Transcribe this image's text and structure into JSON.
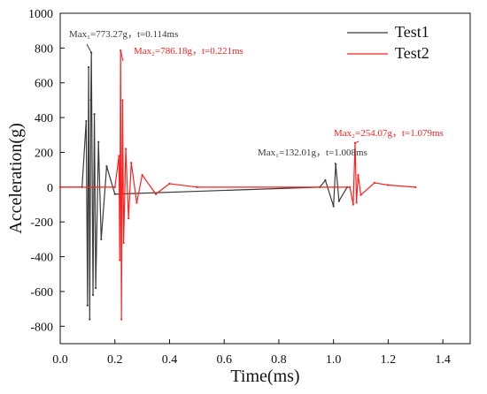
{
  "chart_data": {
    "type": "line",
    "title": "",
    "xlabel": "Time(ms)",
    "ylabel": "Acceleration(g)",
    "xlim": [
      0.0,
      1.5
    ],
    "ylim": [
      -900,
      1000
    ],
    "x_ticks": [
      "0.0",
      "0.2",
      "0.4",
      "0.6",
      "0.8",
      "1.0",
      "1.2",
      "1.4"
    ],
    "y_ticks": [
      "-800",
      "-600",
      "-400",
      "-200",
      "0",
      "200",
      "400",
      "600",
      "800",
      "1000"
    ],
    "grid": false,
    "legend_position": "top-right",
    "series": [
      {
        "name": "Test1",
        "color": "#3a3a3a",
        "x": [
          0.0,
          0.08,
          0.095,
          0.1,
          0.104,
          0.108,
          0.112,
          0.114,
          0.12,
          0.125,
          0.13,
          0.14,
          0.15,
          0.17,
          0.2,
          0.95,
          0.97,
          1.0,
          1.008,
          1.02,
          1.05
        ],
        "y": [
          0,
          0,
          380,
          -680,
          690,
          -760,
          500,
          773.27,
          -620,
          420,
          -580,
          260,
          -300,
          120,
          -40,
          0,
          40,
          -110,
          132.01,
          -80,
          0
        ]
      },
      {
        "name": "Test2",
        "color": "#ff1f1f",
        "x": [
          0.0,
          0.2,
          0.215,
          0.218,
          0.221,
          0.224,
          0.228,
          0.232,
          0.24,
          0.25,
          0.26,
          0.28,
          0.3,
          0.35,
          0.4,
          0.5,
          1.06,
          1.072,
          1.079,
          1.084,
          1.09,
          1.1,
          1.15,
          1.2,
          1.3
        ],
        "y": [
          0,
          0,
          180,
          -420,
          786.18,
          -760,
          500,
          -320,
          220,
          -180,
          140,
          -90,
          70,
          -40,
          20,
          0,
          0,
          -100,
          254.07,
          -90,
          70,
          -45,
          25,
          12,
          0
        ]
      }
    ],
    "annotations": [
      {
        "series": "Test1",
        "label": "Max₁=773.27g，t=0.114ms",
        "x": 0.114,
        "y": 773.27
      },
      {
        "series": "Test2",
        "label": "Max₂=786.18g，t=0.221ms",
        "x": 0.221,
        "y": 786.18
      },
      {
        "series": "Test1",
        "label": "Max₁=132.01g，t=1.008ms",
        "x": 1.008,
        "y": 132.01
      },
      {
        "series": "Test2",
        "label": "Max₂=254.07g，t=1.079ms",
        "x": 1.079,
        "y": 254.07
      }
    ]
  }
}
